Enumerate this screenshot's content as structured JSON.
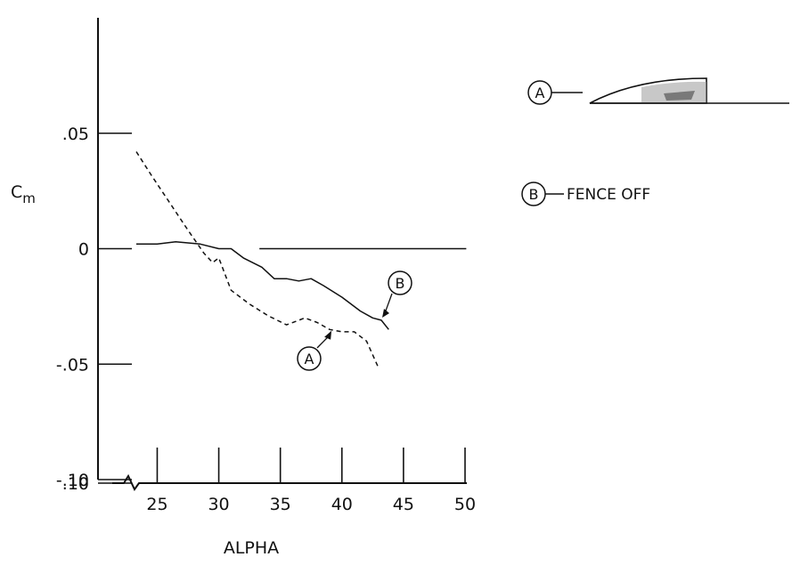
{
  "chart_data": {
    "type": "line",
    "xlabel": "ALPHA",
    "ylabel": "C",
    "ylabel_sub": "m",
    "xlim": [
      20,
      50
    ],
    "ylim": [
      -0.1,
      0.1
    ],
    "x_ticks": [
      25,
      30,
      35,
      40,
      45,
      50
    ],
    "x_tick_labels": [
      "25",
      "30",
      "35",
      "40",
      "45",
      "50"
    ],
    "y_ticks": [
      0.1,
      0.05,
      0,
      -0.05,
      -0.1
    ],
    "y_tick_labels": [
      ".10",
      ".05",
      "0",
      "-.05",
      "-.10"
    ],
    "grid": false,
    "reference_line": {
      "y": 0,
      "x_from": 33.3,
      "x_to": 50.1
    },
    "series": [
      {
        "name": "A",
        "style": "dashed",
        "x": [
          23.3,
          24.5,
          26,
          27.5,
          28.8,
          29.5,
          30,
          31,
          32.5,
          34,
          35.5,
          37,
          38,
          39,
          40,
          41,
          42,
          43
        ],
        "y": [
          0.042,
          0.032,
          0.02,
          0.008,
          -0.002,
          -0.006,
          -0.004,
          -0.018,
          -0.024,
          -0.029,
          -0.033,
          -0.03,
          -0.032,
          -0.035,
          -0.036,
          -0.036,
          -0.04,
          -0.052
        ]
      },
      {
        "name": "B",
        "style": "solid",
        "x": [
          23.3,
          25,
          26.5,
          28.5,
          30,
          31,
          32,
          33.5,
          34.5,
          35.5,
          36.5,
          37.5,
          38.5,
          40,
          41.5,
          42.5,
          43.2,
          43.8
        ],
        "y": [
          0.002,
          0.002,
          0.003,
          0.002,
          0.0,
          0.0,
          -0.004,
          -0.008,
          -0.013,
          -0.013,
          -0.014,
          -0.013,
          -0.016,
          -0.021,
          -0.027,
          -0.03,
          -0.031,
          -0.035
        ]
      }
    ],
    "annotations": [
      {
        "marker": "A",
        "target": [
          39.3,
          -0.034
        ]
      },
      {
        "marker": "B",
        "target": [
          43.2,
          -0.031
        ]
      }
    ],
    "legend": {
      "placement": "top-right",
      "entries": [
        {
          "marker": "A",
          "label": ""
        },
        {
          "marker": "B",
          "label": "FENCE OFF"
        }
      ]
    },
    "colors": {
      "ink": "#111111"
    }
  }
}
